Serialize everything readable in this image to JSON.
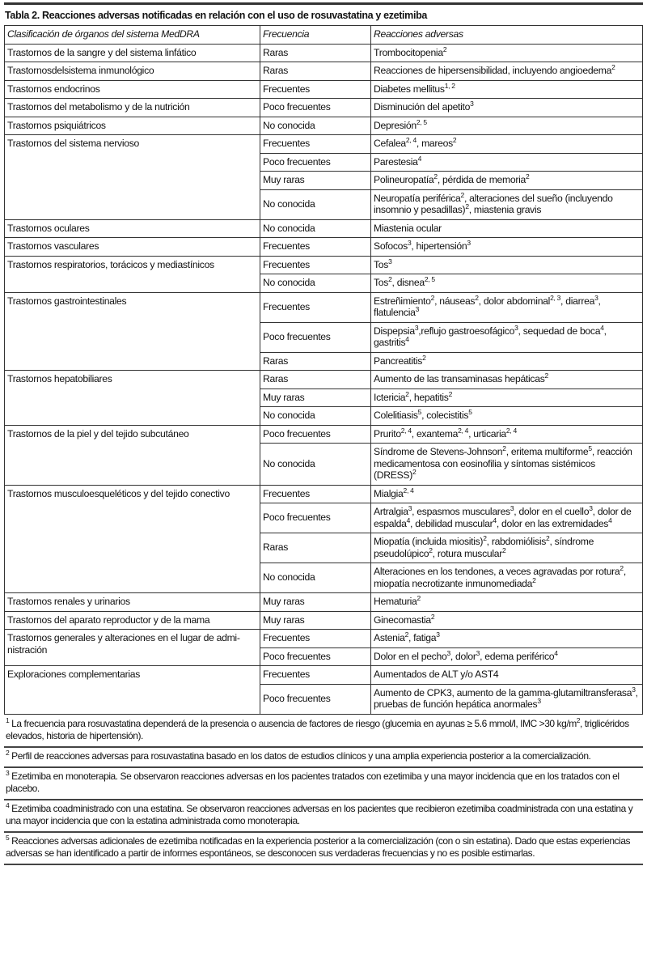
{
  "title": "Tabla 2. Reacciones adversas notificadas en relación con el uso de rosuvastatina y ezetimiba",
  "headers": [
    "Clasificación de órganos del sistema MedDRA",
    "Frecuencia",
    "Reacciones adversas"
  ],
  "groups": [
    {
      "organ": "Trastornos de la sangre y del sistema linfático",
      "rows": [
        {
          "freq": "Raras",
          "reaction": [
            [
              "Trombocitopenia",
              "2"
            ]
          ]
        }
      ]
    },
    {
      "organ": "Trastornosdelsistema inmunológico",
      "rows": [
        {
          "freq": "Raras",
          "reaction": [
            [
              "Reacciones de hipersensibilidad, incluyendo angioedema",
              "2"
            ]
          ]
        }
      ]
    },
    {
      "organ": "Trastornos endocrinos",
      "rows": [
        {
          "freq": "Frecuentes",
          "reaction": [
            [
              "Diabetes mellitus",
              "1, 2"
            ]
          ]
        }
      ]
    },
    {
      "organ": "Trastornos del metabolismo  y de la nutrición",
      "rows": [
        {
          "freq": "Poco frecuentes",
          "reaction": [
            [
              "Disminución del apetito",
              "3"
            ]
          ]
        }
      ]
    },
    {
      "organ": "Trastornos psiquiátricos",
      "rows": [
        {
          "freq": "No conocida",
          "reaction": [
            [
              "Depresión",
              "2, 5"
            ]
          ]
        }
      ]
    },
    {
      "organ": "Trastornos del sistema nervioso",
      "rows": [
        {
          "freq": "Frecuentes",
          "reaction": [
            [
              "Cefalea",
              "2, 4"
            ],
            [
              ", mareos",
              "2"
            ]
          ]
        },
        {
          "freq": "Poco frecuentes",
          "reaction": [
            [
              "Parestesia",
              "4"
            ]
          ]
        },
        {
          "freq": "Muy raras",
          "reaction": [
            [
              "Polineuropatía",
              "2"
            ],
            [
              ", pérdida de memoria",
              "2"
            ]
          ]
        },
        {
          "freq": "No conocida",
          "reaction": [
            [
              "Neuropatía periférica",
              "2"
            ],
            [
              ", alteraciones del sueño (incluyendo insomnio y pesadillas)",
              "2"
            ],
            [
              ", miastenia gravis",
              ""
            ]
          ]
        }
      ]
    },
    {
      "organ": "Trastornos oculares",
      "rows": [
        {
          "freq": "No conocida",
          "reaction": [
            [
              "Miastenia ocular",
              ""
            ]
          ]
        }
      ]
    },
    {
      "organ": "Trastornos vasculares",
      "rows": [
        {
          "freq": "Frecuentes",
          "reaction": [
            [
              "Sofocos",
              "3"
            ],
            [
              ", hipertensión",
              "3"
            ]
          ]
        }
      ]
    },
    {
      "organ": "Trastornos respiratorios, torácicos y mediastínicos",
      "rows": [
        {
          "freq": "Frecuentes",
          "reaction": [
            [
              "Tos",
              "3"
            ]
          ]
        },
        {
          "freq": "No conocida",
          "reaction": [
            [
              "Tos",
              "2"
            ],
            [
              ", disnea",
              "2, 5"
            ]
          ]
        }
      ]
    },
    {
      "organ": "Trastornos gastrointestinales",
      "rows": [
        {
          "freq": "Frecuentes",
          "reaction": [
            [
              "Estreñimiento",
              "2"
            ],
            [
              ", náuseas",
              "2"
            ],
            [
              ", dolor abdominal",
              "2, 3"
            ],
            [
              ", diarrea",
              "3"
            ],
            [
              ", flatulencia",
              "3"
            ]
          ]
        },
        {
          "freq": "Poco frecuentes",
          "reaction": [
            [
              "Dispepsia",
              "3"
            ],
            [
              ",reflujo gastroesofágico",
              "3"
            ],
            [
              ", sequedad de boca",
              "4"
            ],
            [
              ", gastritis",
              "4"
            ]
          ]
        },
        {
          "freq": "Raras",
          "reaction": [
            [
              "Pancreatitis",
              "2"
            ]
          ]
        }
      ]
    },
    {
      "organ": "Trastornos hepatobiliares",
      "rows": [
        {
          "freq": "Raras",
          "reaction": [
            [
              "Aumento de las transaminasas hepáticas",
              "2"
            ]
          ]
        },
        {
          "freq": "Muy raras",
          "reaction": [
            [
              "Ictericia",
              "2"
            ],
            [
              ", hepatitis",
              "2"
            ]
          ]
        },
        {
          "freq": "No conocida",
          "reaction": [
            [
              "Colelitiasis",
              "5"
            ],
            [
              ", colecistitis",
              "5"
            ]
          ]
        }
      ]
    },
    {
      "organ": "Trastornos de la piel y del tejido subcutáneo",
      "rows": [
        {
          "freq": "Poco frecuentes",
          "reaction": [
            [
              "Prurito",
              "2, 4"
            ],
            [
              ", exantema",
              "2, 4"
            ],
            [
              ", urticaria",
              "2, 4"
            ]
          ]
        },
        {
          "freq": "No conocida",
          "reaction": [
            [
              "Síndrome de Stevens-Johnson",
              "2"
            ],
            [
              ", eritema multiforme",
              "5"
            ],
            [
              ", reac­ción medicamentosa con eosinofilia y síntomas sistémicos (DRESS)",
              "2"
            ]
          ]
        }
      ]
    },
    {
      "organ": "Trastornos musculoesqueléticos y del tejido conectivo",
      "rows": [
        {
          "freq": "Frecuentes",
          "reaction": [
            [
              "Mialgia",
              "2, 4"
            ]
          ]
        },
        {
          "freq": "Poco frecuentes",
          "reaction": [
            [
              "Artralgia",
              "3"
            ],
            [
              ", espasmos musculares",
              "3"
            ],
            [
              ", dolor en el cuello",
              "3"
            ],
            [
              ", dolor de espalda",
              "4"
            ],
            [
              ", debilidad muscular",
              "4"
            ],
            [
              ", dolor en las extremidades",
              "4"
            ]
          ]
        },
        {
          "freq": "Raras",
          "reaction": [
            [
              "Miopatía (incluida miositis)",
              "2"
            ],
            [
              ", rabdomiólisis",
              "2"
            ],
            [
              ",  síndrome pseudolúpico",
              "2"
            ],
            [
              ", rotura muscular",
              "2"
            ]
          ]
        },
        {
          "freq": "No conocida",
          "reaction": [
            [
              "Alteraciones en los tendones, a veces agravadas por rotura",
              "2"
            ],
            [
              ", miopatía necrotizante inmunomediada",
              "2"
            ]
          ]
        }
      ]
    },
    {
      "organ": "Trastornos renales y urinarios",
      "rows": [
        {
          "freq": "Muy raras",
          "reaction": [
            [
              "Hematuria",
              "2"
            ]
          ]
        }
      ]
    },
    {
      "organ": "Trastornos del aparato reproductor y de la mama",
      "rows": [
        {
          "freq": "Muy raras",
          "reaction": [
            [
              "Ginecomastia",
              "2"
            ]
          ]
        }
      ]
    },
    {
      "organ": "Trastornos generales y alteraciones en el lugar de admi­nistración",
      "rows": [
        {
          "freq": "Frecuentes",
          "reaction": [
            [
              "Astenia",
              "2"
            ],
            [
              ", fatiga",
              "3"
            ]
          ]
        },
        {
          "freq": "Poco frecuentes",
          "reaction": [
            [
              "Dolor en el pecho",
              "3"
            ],
            [
              ", dolor",
              "3"
            ],
            [
              ", edema periférico",
              "4"
            ]
          ]
        }
      ]
    },
    {
      "organ": "Exploraciones complementarias",
      "rows": [
        {
          "freq": "Frecuentes",
          "reaction": [
            [
              "Aumentados de ALT y/o AST4",
              ""
            ]
          ]
        },
        {
          "freq": "Poco frecuentes",
          "reaction": [
            [
              "Aumento de CPK3, aumento de la gamma-glutamiltransfe­rasa",
              "3"
            ],
            [
              ", pruebas de función hepática anormales",
              "3"
            ]
          ]
        }
      ]
    }
  ],
  "footnotes": [
    [
      [
        "",
        "1"
      ],
      [
        " La frecuencia para rosuvastatina dependerá de la presencia o ausencia de factores de riesgo (glucemia en ayunas  ≥  5.6 mmol/l, IMC >30 kg/m",
        "2"
      ],
      [
        ", triglicéridos elevados, historia de hipertensión).",
        ""
      ]
    ],
    [
      [
        "",
        "2"
      ],
      [
        " Perfil de reacciones adversas para rosuvastatina basado en los datos de estudios clínicos y una amplia experiencia posterior a la comercialización.",
        ""
      ]
    ],
    [
      [
        "",
        "3"
      ],
      [
        " Ezetimiba en monoterapia. Se observaron reacciones adversas en los pacientes tratados con ezetimiba y una mayor incidencia que en los tratados con el placebo.",
        ""
      ]
    ],
    [
      [
        "",
        "4"
      ],
      [
        " Ezetimiba coadministrado con una estatina. Se observaron reacciones adversas en los pacientes que recibieron ezetimiba coadministrada con una estatina y una mayor incidencia que con la estatina administrada como monoterapia.",
        ""
      ]
    ],
    [
      [
        "",
        "5"
      ],
      [
        " Reacciones adversas adicionales de ezetimiba notificadas en la experiencia posterior a la comercialización (con o sin estatina). Dado que estas experiencias adversas se han identificado a partir de informes espontáneos, se desconocen sus verdaderas frecuencias y no es posible estimarlas.",
        ""
      ]
    ]
  ]
}
